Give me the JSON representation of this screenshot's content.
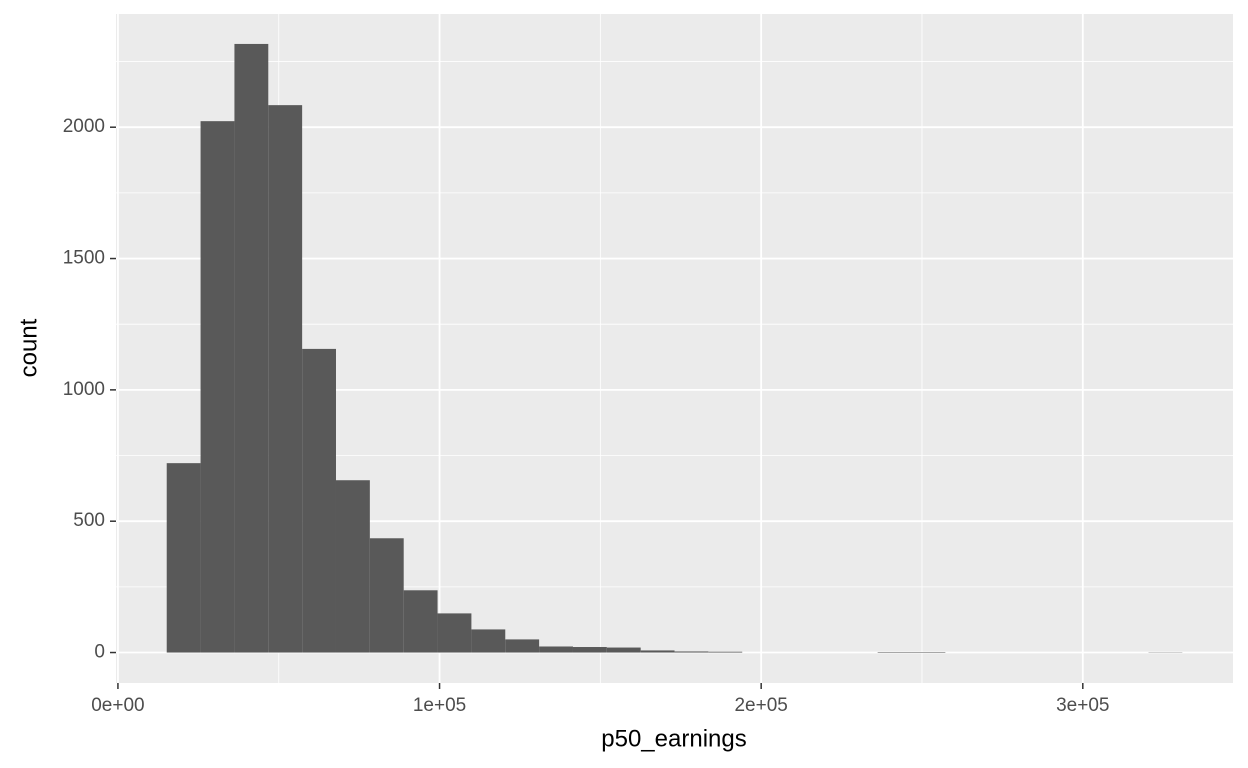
{
  "chart_data": {
    "type": "histogram",
    "x_label": "p50_earnings",
    "y_label": "count",
    "bins": [
      15170,
      25696,
      36222,
      46748,
      57274,
      67800,
      78326,
      88852,
      99378,
      109904,
      120430,
      130956,
      141482,
      152008,
      162534,
      173060,
      183586,
      194112,
      204638,
      215164,
      225690,
      236216,
      246742,
      257268,
      267794,
      278320,
      288846,
      299372,
      309898,
      320424,
      330950
    ],
    "values": [
      721,
      2023,
      2317,
      2084,
      1156,
      656,
      435,
      237,
      149,
      88,
      50,
      23,
      21,
      19,
      8,
      4,
      3,
      0,
      0,
      0,
      0,
      2,
      2,
      0,
      0,
      0,
      0,
      0,
      0,
      1
    ],
    "color": "#595959",
    "xlim": [
      -600,
      346700
    ],
    "ylim": [
      -116,
      2431
    ],
    "xticks": [
      {
        "value": 0,
        "label": "0e+00"
      },
      {
        "value": 100000,
        "label": "1e+05"
      },
      {
        "value": 200000,
        "label": "2e+05"
      },
      {
        "value": 300000,
        "label": "3e+05"
      }
    ],
    "yticks": [
      0,
      500,
      1000,
      1500,
      2000
    ],
    "x_minor_ticks": [
      50000,
      150000,
      250000
    ],
    "y_minor_ticks": [
      250,
      750,
      1250,
      1750,
      2250
    ],
    "grid": true
  }
}
